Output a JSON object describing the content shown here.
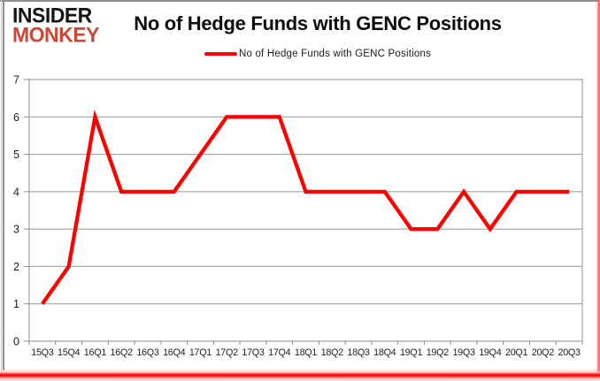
{
  "header": {
    "logo": {
      "line1": "INSIDER",
      "line2": "MONKEY"
    },
    "title": "No of Hedge Funds with GENC Positions",
    "legend_label": "No of Hedge Funds with GENC Positions"
  },
  "colors": {
    "series_line": "#ff0000",
    "logo_black": "#141414",
    "logo_red": "#cb4838",
    "grid": "#969696",
    "axis": "#8c8c8c",
    "label_text": "#1f1f1f"
  },
  "chart_data": {
    "type": "line",
    "title": "No of Hedge Funds with GENC Positions",
    "categories": [
      "15Q3",
      "15Q4",
      "16Q1",
      "16Q2",
      "16Q3",
      "16Q4",
      "17Q1",
      "17Q2",
      "17Q3",
      "17Q4",
      "18Q1",
      "18Q2",
      "18Q3",
      "18Q4",
      "19Q1",
      "19Q2",
      "19Q3",
      "19Q4",
      "20Q1",
      "20Q2",
      "20Q3"
    ],
    "series": [
      {
        "name": "No of Hedge Funds with GENC Positions",
        "color": "#ff0000",
        "values": [
          1,
          2,
          6,
          4,
          4,
          4,
          5,
          6,
          6,
          6,
          4,
          4,
          4,
          4,
          3,
          3,
          4,
          3,
          4,
          4,
          4
        ]
      }
    ],
    "xlabel": "",
    "ylabel": "",
    "ylim": [
      0,
      7
    ],
    "yticks": [
      0,
      1,
      2,
      3,
      4,
      5,
      6,
      7
    ],
    "grid": true,
    "legend_position": "top"
  }
}
